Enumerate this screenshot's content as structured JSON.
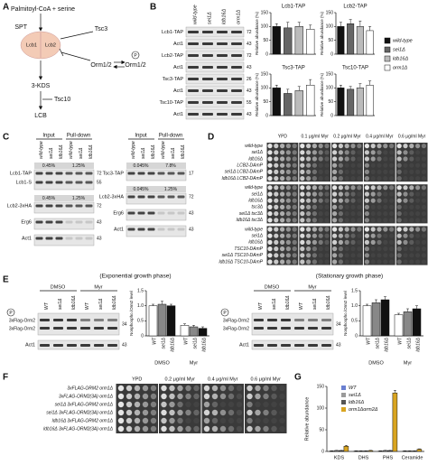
{
  "A": {
    "label": "A",
    "substrate": "Palmitoyl-CoA + serine",
    "enzyme": "SPT",
    "subunits": [
      "Lcb1",
      "Lcb2"
    ],
    "regulator": "Tsc3",
    "orm": "Orm1/2",
    "orm_p": "Orm1/2",
    "phospho": "P",
    "intermediate": "3-KDS",
    "reductase": "Tsc10",
    "product": "LCB"
  },
  "B": {
    "label": "B",
    "strains": [
      "wild-type",
      "sei1Δ",
      "ldb16Δ",
      "orm1Δ"
    ],
    "colors": [
      "#111111",
      "#666666",
      "#bbbbbb",
      "#ffffff"
    ],
    "blots": [
      {
        "name": "Lcb1-TAP",
        "mw": "72"
      },
      {
        "name": "Act1",
        "mw": "43"
      },
      {
        "name": "Lcb2-TAP",
        "mw": "72"
      },
      {
        "name": "Act1",
        "mw": "43"
      },
      {
        "name": "Tsc3-TAP",
        "mw": "26"
      },
      {
        "name": "Act1",
        "mw": "43"
      },
      {
        "name": "Tsc10-TAP",
        "mw": "55"
      },
      {
        "name": "Act1",
        "mw": "43"
      }
    ],
    "ylabel": "Relative abundance (%)",
    "ylim": [
      0,
      150
    ],
    "yticks": [
      0,
      50,
      100,
      150
    ],
    "charts": [
      {
        "type": "bar",
        "title": "Lcb1-TAP",
        "values": [
          100,
          95,
          100,
          90
        ],
        "errors": [
          10,
          20,
          15,
          15
        ]
      },
      {
        "type": "bar",
        "title": "Lcb2-TAP",
        "values": [
          100,
          110,
          100,
          85
        ],
        "errors": [
          15,
          15,
          20,
          15
        ]
      },
      {
        "type": "bar",
        "title": "Tsc3-TAP",
        "values": [
          100,
          80,
          90,
          110
        ],
        "errors": [
          10,
          15,
          15,
          20
        ]
      },
      {
        "type": "bar",
        "title": "Tsc10-TAP",
        "values": [
          100,
          95,
          100,
          110
        ],
        "errors": [
          10,
          10,
          15,
          15
        ]
      }
    ]
  },
  "C": {
    "label": "C",
    "strains": [
      "wild-type",
      "sei1Δ",
      "ldb16Δ"
    ],
    "input": "Input",
    "pulldown": "Pull-down",
    "blots": [
      {
        "rows": [
          {
            "names": [
              "Lcb1-TAP",
              "Lcb1-S"
            ],
            "mw": [
              "72",
              "55"
            ],
            "pct": [
              "0.45%",
              "1.25%"
            ]
          },
          {
            "names": [
              "Lcb2-3xHA"
            ],
            "mw": [
              "72"
            ],
            "pct": [
              "0.45%",
              "1.25%"
            ]
          },
          {
            "names": [
              "Erg6"
            ],
            "mw": [
              "43"
            ]
          },
          {
            "names": [
              "Act1"
            ],
            "mw": [
              "43"
            ]
          }
        ]
      },
      {
        "rows": [
          {
            "names": [
              "Tsc3-TAP"
            ],
            "mw": [
              "17"
            ],
            "pct": [
              "0.045%",
              "7.8%"
            ]
          },
          {
            "names": [
              "Lcb2-3xHA"
            ],
            "mw": [
              "72"
            ],
            "pct": [
              "0.045%",
              "1.25%"
            ]
          },
          {
            "names": [
              "Erg6"
            ],
            "mw": [
              "43"
            ]
          },
          {
            "names": [
              "Act1"
            ],
            "mw": [
              "43"
            ]
          }
        ]
      }
    ]
  },
  "D": {
    "label": "D",
    "conditions": [
      "YPD",
      "0.1 μg/ml Myr",
      "0.2 μg/ml Myr",
      "0.4 μg/ml Myr",
      "0.6 μg/ml Myr"
    ],
    "groups": [
      [
        "wild-type",
        "sei1Δ",
        "ldb16Δ",
        "LCB2-DAmP",
        "sei1Δ LCB2-DAmP",
        "ldb16Δ LCB2-DAmP"
      ],
      [
        "wild-type",
        "sei1Δ",
        "ldb16Δ",
        "tsc3Δ",
        "sei1Δ tsc3Δ",
        "ldb16Δ tsc3Δ"
      ],
      [
        "wild-type",
        "sei1Δ",
        "ldb16Δ",
        "TSC10-DAmP",
        "sei1Δ TSC10-DAmP",
        "ldb16Δ TSC10-DAmP"
      ]
    ]
  },
  "E": {
    "label": "E",
    "treatments": [
      "DMSO",
      "Myr"
    ],
    "strains": [
      "WT",
      "sei1Δ",
      "ldb16Δ"
    ],
    "orm": "3xFlag-Orm2",
    "loading": "Act1",
    "phospho": "P",
    "mw": [
      "34",
      "43"
    ],
    "ylabel": "Nonphospho./Orm2 level",
    "ylim": [
      0,
      1.5
    ],
    "yticks": [
      0,
      0.5,
      {
        "value": 1,
        "label": "1.0"
      },
      1.5
    ],
    "colors": [
      "#ffffff",
      "#888888",
      "#111111"
    ],
    "phases": [
      {
        "title": "(Exponential growth phase)",
        "values": [
          [
            1.0,
            1.05,
            1.0
          ],
          [
            0.35,
            0.3,
            0.25
          ]
        ],
        "errors": [
          [
            0.05,
            0.1,
            0.05
          ],
          [
            0.05,
            0.05,
            0.05
          ]
        ]
      },
      {
        "title": "(Stationary growth phase)",
        "values": [
          [
            1.0,
            1.1,
            1.2
          ],
          [
            0.7,
            0.8,
            0.9
          ]
        ],
        "errors": [
          [
            0.05,
            0.1,
            0.1
          ],
          [
            0.05,
            0.1,
            0.1
          ]
        ]
      }
    ]
  },
  "F": {
    "label": "F",
    "conditions": [
      "YPD",
      "0.2 μg/ml Myr",
      "0.4 μg/ml Myr",
      "0.6 μg/ml Myr"
    ],
    "strains": [
      "3xFLAG-ORM2 orm1Δ",
      "3xFLAG-ORM2(3A) orm1Δ",
      "sei1Δ 3xFLAG-ORM2 orm1Δ",
      "sei1Δ 3xFLAG-ORM2(3A) orm1Δ",
      "ldb16Δ 3xFLAG-ORM2 orm1Δ",
      "ldb16Δ 3xFLAG-ORM2(3A) orm1Δ"
    ]
  },
  "G": {
    "label": "G",
    "type": "bar",
    "ylabel": "Relative abundance",
    "categories": [
      "KDS",
      "DHS",
      "PHS",
      "Ceramide"
    ],
    "ylim": [
      0,
      150
    ],
    "yticks": [
      0,
      50,
      100,
      150
    ],
    "series": [
      {
        "name": "WT",
        "color": "#6a7fd1",
        "values": [
          1,
          1,
          1,
          1
        ],
        "errors": [
          0.5,
          0.5,
          0.5,
          0.5
        ]
      },
      {
        "name": "sei1Δ",
        "color": "#9a9a9a",
        "values": [
          2,
          1,
          2,
          1
        ],
        "errors": [
          0.5,
          0.5,
          0.5,
          0.5
        ]
      },
      {
        "name": "ldb16Δ",
        "color": "#555555",
        "values": [
          2,
          1,
          2,
          1
        ],
        "errors": [
          0.5,
          0.5,
          0.5,
          0.5
        ]
      },
      {
        "name": "orm1Δorm2Δ",
        "color": "#d9a521",
        "values": [
          12,
          2,
          135,
          5
        ],
        "errors": [
          2,
          0.5,
          6,
          1
        ]
      }
    ]
  }
}
